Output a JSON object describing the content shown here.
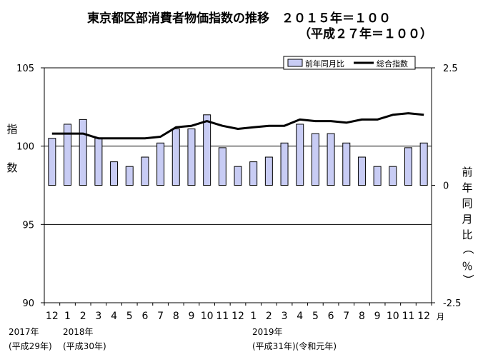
{
  "chart_data": {
    "type": "bar",
    "title_line1": "東京都区部消費者物価指数の推移　２０１５年＝１００",
    "title_line2": "（平成２７年＝１００）",
    "categories": [
      "12",
      "1",
      "2",
      "3",
      "4",
      "5",
      "6",
      "7",
      "8",
      "9",
      "10",
      "11",
      "12",
      "1",
      "2",
      "3",
      "4",
      "5",
      "6",
      "7",
      "8",
      "9",
      "10",
      "11",
      "12"
    ],
    "month_unit": "月",
    "year_labels": [
      {
        "year": "2017年",
        "era": "(平成29年)"
      },
      {
        "year": "2018年",
        "era": "(平成30年)"
      },
      {
        "year": "2019年",
        "era": "(平成31年)(令和元年)"
      }
    ],
    "y_left": {
      "label": "指数",
      "ticks": [
        "105",
        "100",
        "95",
        "90"
      ],
      "range": [
        90,
        105
      ]
    },
    "y_right": {
      "label": "前年同月比（％）",
      "ticks": [
        "2.5",
        "0",
        "-2.5"
      ],
      "range": [
        -2.5,
        2.5
      ]
    },
    "legend": {
      "placement": "top-right"
    },
    "grid": "horizontal lines at 100 and 95",
    "series": [
      {
        "name": "前年同月比",
        "type": "bar",
        "axis": "right",
        "color": "#c8ccf4",
        "values": [
          1.0,
          1.3,
          1.4,
          1.0,
          0.5,
          0.4,
          0.6,
          0.9,
          1.2,
          1.2,
          1.5,
          0.8,
          0.4,
          0.5,
          0.6,
          0.9,
          1.3,
          1.1,
          1.1,
          0.9,
          0.6,
          0.4,
          0.4,
          0.8,
          0.9
        ]
      },
      {
        "name": "総合指数",
        "type": "line",
        "axis": "left",
        "color": "#000000",
        "values": [
          100.8,
          100.8,
          100.8,
          100.5,
          100.5,
          100.5,
          100.5,
          100.6,
          101.2,
          101.3,
          101.6,
          101.3,
          101.1,
          101.2,
          101.3,
          101.3,
          101.7,
          101.6,
          101.6,
          101.5,
          101.7,
          101.7,
          102.0,
          102.1,
          102.0
        ]
      }
    ]
  }
}
